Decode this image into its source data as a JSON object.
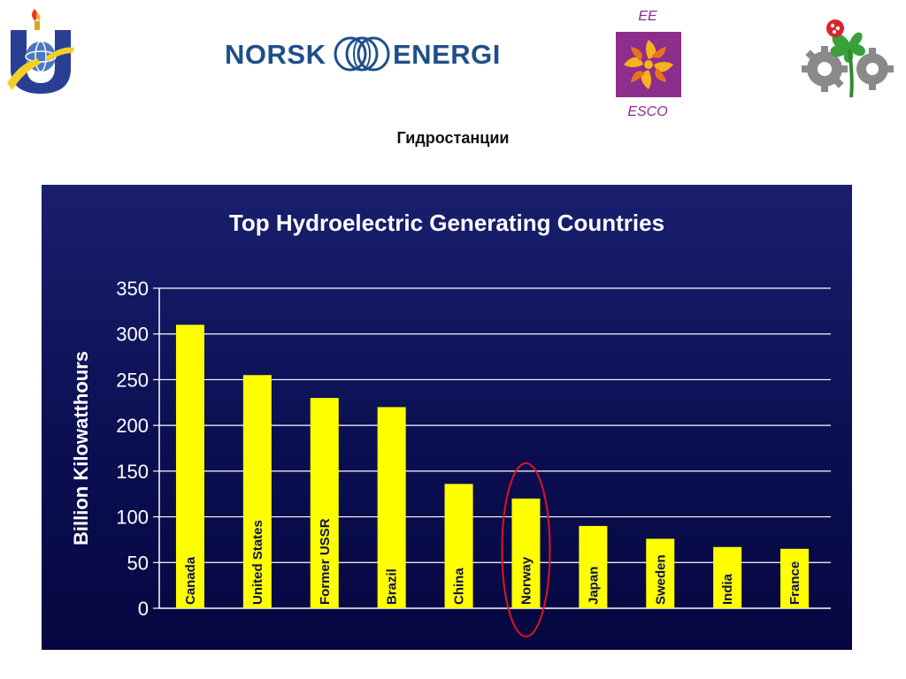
{
  "header": {
    "subtitle": "Гидростанции",
    "logos": [
      {
        "name": "university-u-logo",
        "icon": "u-torch-globe-emblem"
      },
      {
        "name": "norsk-energi-logo",
        "text_left": "NORSK",
        "text_right": "ENERGI",
        "icon": "interlocking-rings-emblem"
      },
      {
        "name": "ee-esco-logo",
        "top_text": "EE",
        "bottom_text": "ESCO",
        "icon": "sun-swirl-emblem"
      },
      {
        "name": "clover-gear-logo",
        "icon": "clover-gear-ladybug-emblem"
      }
    ]
  },
  "colors": {
    "bar": "#ffff00",
    "panel_top": "#1a1f6e",
    "panel_bottom": "#050740",
    "grid": "#ffffff",
    "highlight_ellipse": "#e0141c",
    "brand_blue": "#1f4f8a",
    "brand_purple": "#8d2d8c"
  },
  "chart_data": {
    "type": "bar",
    "title": "Top Hydroelectric Generating Countries",
    "xlabel": "",
    "ylabel": "Billion Kilowatthours",
    "ylim": [
      0,
      350
    ],
    "yticks": [
      0,
      50,
      100,
      150,
      200,
      250,
      300,
      350
    ],
    "grid": true,
    "categories": [
      "Canada",
      "United States",
      "Former USSR",
      "Brazil",
      "China",
      "Norway",
      "Japan",
      "Sweden",
      "India",
      "France"
    ],
    "values": [
      310,
      255,
      230,
      220,
      136,
      120,
      90,
      76,
      67,
      65
    ],
    "highlighted_category": "Norway"
  }
}
